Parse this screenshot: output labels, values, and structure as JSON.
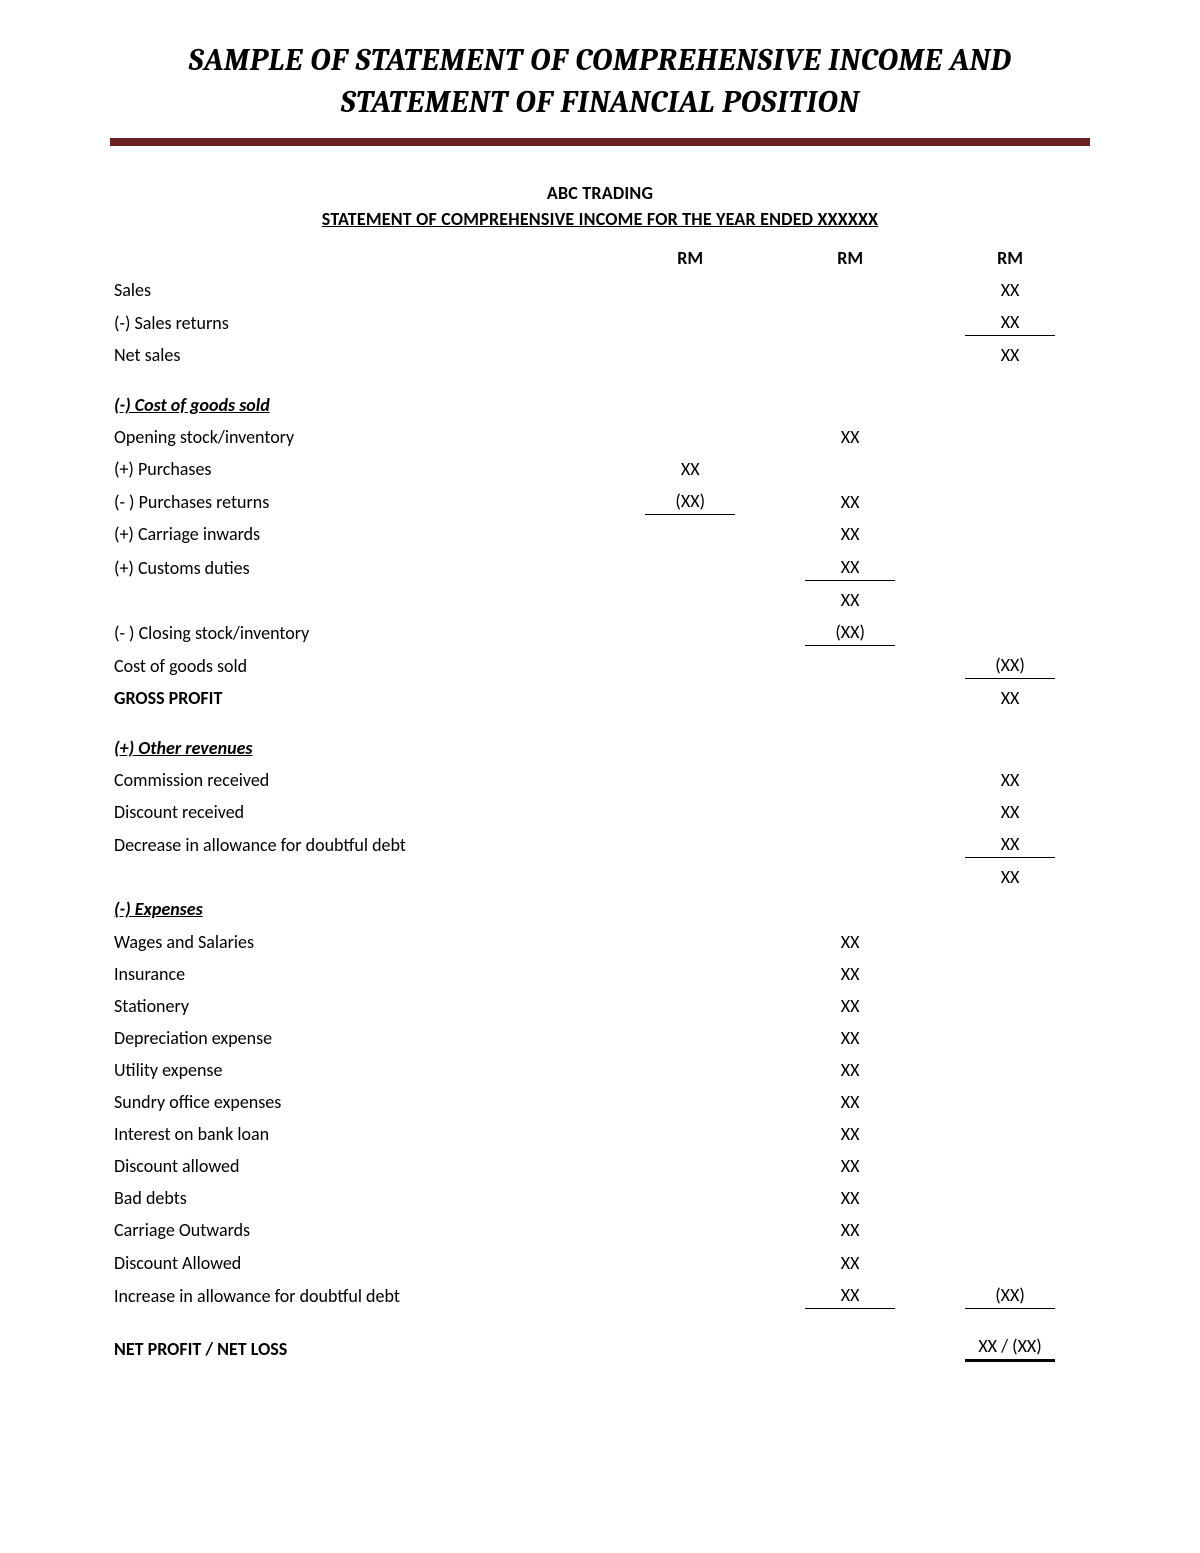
{
  "colors": {
    "rule": "#6a2020",
    "text": "#000000",
    "bg": "#ffffff"
  },
  "typography": {
    "title_family": "Cambria, Georgia, Times New Roman, serif",
    "body_family": "Calibri, Segoe UI, Arial, sans-serif",
    "title_size_pt": 23,
    "body_size_pt": 13
  },
  "doc": {
    "title_line1": "SAMPLE OF STATEMENT OF COMPREHENSIVE INCOME AND",
    "title_line2": "STATEMENT OF FINANCIAL POSITION",
    "company": "ABC TRADING",
    "statement_title": "STATEMENT OF COMPREHENSIVE INCOME FOR THE YEAR ENDED XXXXXX",
    "col_hdr": "RM"
  },
  "rows": {
    "sales": {
      "label": "Sales",
      "c3": "XX"
    },
    "sales_returns": {
      "label": "(-) Sales returns",
      "c3": "XX"
    },
    "net_sales": {
      "label": "Net sales",
      "c3": "XX"
    },
    "sec_cogs": {
      "label": "(-) Cost of goods sold"
    },
    "open_stock": {
      "label": "Opening stock/inventory",
      "c2": "XX"
    },
    "purchases": {
      "label": "(+) Purchases",
      "c1": "XX"
    },
    "purch_returns": {
      "label": "(- ) Purchases returns",
      "c1": "(XX)",
      "c2": "XX"
    },
    "carriage_in": {
      "label": "(+) Carriage inwards",
      "c2": "XX"
    },
    "customs": {
      "label": "(+) Customs duties",
      "c2": "XX"
    },
    "cogs_sub": {
      "label": "",
      "c2": "XX"
    },
    "close_stock": {
      "label": "(- ) Closing stock/inventory",
      "c2": "(XX)"
    },
    "cogs_total": {
      "label": "Cost of goods sold",
      "c3": "(XX)"
    },
    "gross_profit": {
      "label": "GROSS PROFIT",
      "c3": "XX"
    },
    "sec_other_rev": {
      "label": "(+) Other revenues"
    },
    "commission": {
      "label": "Commission received",
      "c3": "XX"
    },
    "disc_recv": {
      "label": "Discount received",
      "c3": "XX"
    },
    "dec_allow": {
      "label": "Decrease in allowance for doubtful debt",
      "c3": "XX"
    },
    "other_rev_sub": {
      "label": "",
      "c3": "XX"
    },
    "sec_expenses": {
      "label": "(-) Expenses"
    },
    "wages": {
      "label": "Wages and Salaries",
      "c2": "XX"
    },
    "insurance": {
      "label": "Insurance",
      "c2": "XX"
    },
    "stationery": {
      "label": "Stationery",
      "c2": "XX"
    },
    "dep": {
      "label": "Depreciation expense",
      "c2": "XX"
    },
    "utility": {
      "label": "Utility expense",
      "c2": "XX"
    },
    "sundry": {
      "label": "Sundry office expenses",
      "c2": "XX"
    },
    "interest": {
      "label": "Interest on bank loan",
      "c2": "XX"
    },
    "disc_allow": {
      "label": "Discount allowed",
      "c2": "XX"
    },
    "bad_debts": {
      "label": "Bad debts",
      "c2": "XX"
    },
    "carriage_out": {
      "label": "Carriage Outwards",
      "c2": "XX"
    },
    "disc_allow2": {
      "label": "Discount Allowed",
      "c2": "XX"
    },
    "inc_allow": {
      "label": "Increase in allowance for doubtful debt",
      "c2": "XX",
      "c3": "(XX)"
    },
    "net": {
      "label": "NET PROFIT / NET LOSS",
      "c3": "XX / (XX)"
    }
  }
}
